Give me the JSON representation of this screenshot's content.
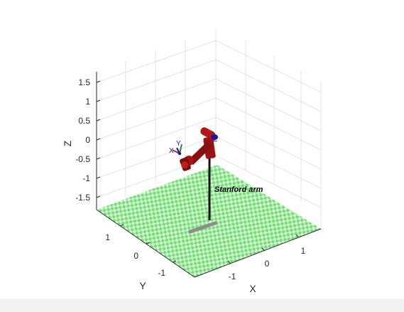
{
  "plot": {
    "robot_name": "Stanford arm",
    "axes": {
      "x": {
        "label": "X",
        "ticks": [
          "-1",
          "0",
          "1"
        ]
      },
      "y": {
        "label": "Y",
        "ticks": [
          "-1",
          "0",
          "1"
        ]
      },
      "z": {
        "label": "Z",
        "ticks": [
          "1.5",
          "1",
          "0.5",
          "0",
          "-0.5",
          "-1",
          "-1.5"
        ]
      }
    },
    "tool_frame": {
      "x_label": "X",
      "y_label": "Y",
      "z_label": "Z"
    },
    "colors": {
      "floor_green": "#74df74",
      "floor_light": "#d6f7d6",
      "link_red": "#9a1212",
      "joint_blue": "#1a1a9c",
      "base_gray": "#8c8c8c",
      "grid": "#e3e3e3",
      "axis": "#262626",
      "background": "#ffffff",
      "band": "#f0f0f0"
    }
  }
}
